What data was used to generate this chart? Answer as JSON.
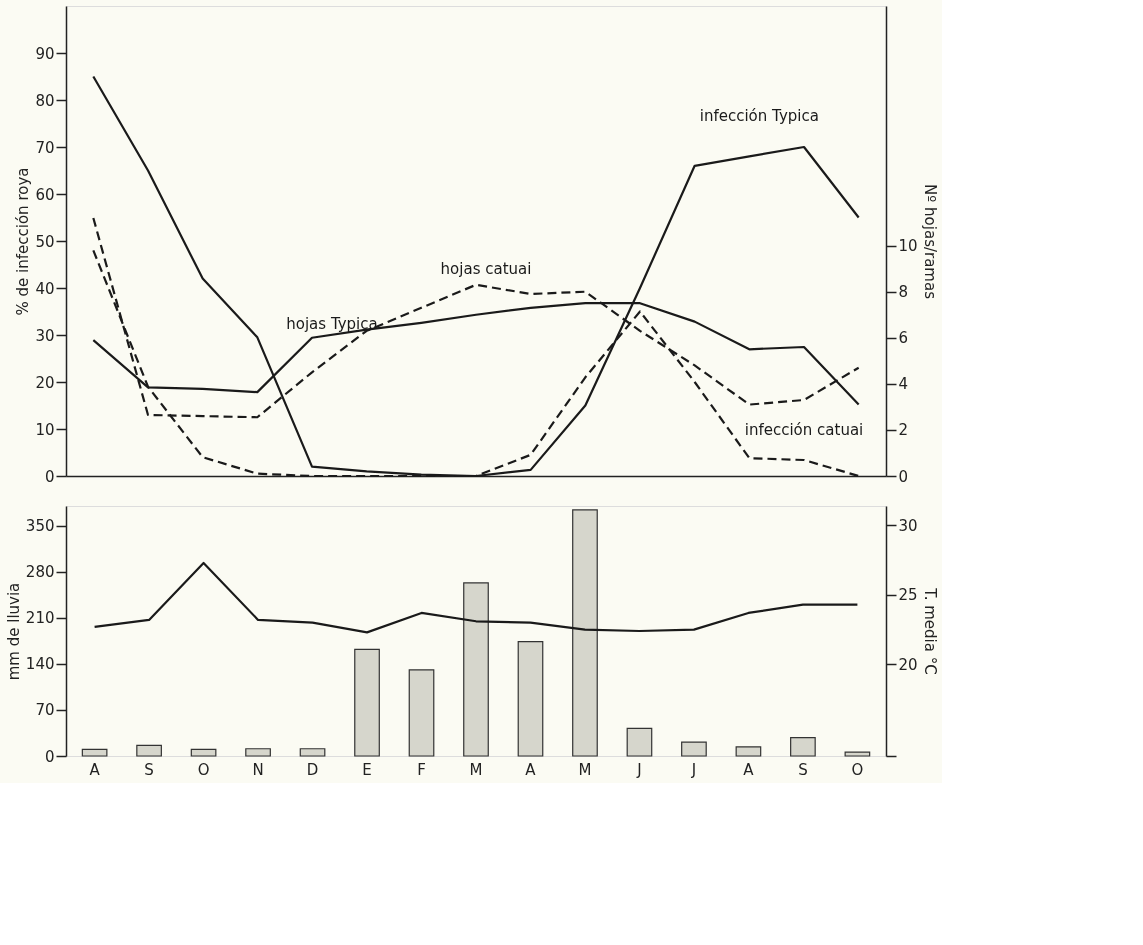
{
  "chart_data": [
    {
      "type": "line",
      "categories": [
        null,
        null,
        null,
        null,
        null,
        null,
        null,
        null,
        null,
        null,
        null,
        null,
        null,
        null,
        null
      ],
      "tick_labels": "y",
      "grid": false,
      "ylabel": "% de infección roya",
      "ylim": [
        0,
        100
      ],
      "yticks": [
        0,
        10,
        20,
        30,
        40,
        50,
        60,
        70,
        80,
        90
      ],
      "y2label": "Nº hojas/ramas",
      "y2lim": [
        0,
        20.4
      ],
      "y2ticks": [
        0,
        2,
        4,
        6,
        8,
        10
      ],
      "series": [
        {
          "name": "infección Typica",
          "color": "#1a1a1a",
          "line_style": "solid",
          "values": [
            85,
            65,
            42,
            29.5,
            2,
            1,
            0.3,
            0,
            1.3,
            15,
            40,
            66,
            68,
            70,
            55
          ]
        },
        {
          "name": "infección catuai",
          "color": "#1a1a1a",
          "line_style": "dashed",
          "values": [
            48,
            19,
            4,
            0.5,
            0,
            0,
            0,
            0,
            4.5,
            21,
            35,
            20,
            3.8,
            3.4,
            0
          ]
        },
        {
          "name": "hojas Typica",
          "color": "#1a1a1a",
          "line_style": "solid",
          "axis": "y2",
          "values": [
            5.9,
            3.85,
            3.78,
            3.64,
            6.0,
            6.35,
            6.65,
            7.0,
            7.3,
            7.5,
            7.5,
            6.7,
            5.5,
            5.6,
            3.1
          ]
        },
        {
          "name": "hojas catuai",
          "color": "#1a1a1a",
          "line_style": "dashed",
          "axis": "y2",
          "values": [
            11.2,
            2.65,
            2.6,
            2.55,
            4.5,
            6.3,
            7.3,
            8.3,
            7.9,
            8.0,
            6.3,
            4.8,
            3.1,
            3.3,
            4.7
          ]
        }
      ]
    },
    {
      "type": "bar",
      "categories": [
        "A",
        "S",
        "O",
        "N",
        "D",
        "E",
        "F",
        "M",
        "A",
        "M",
        "J",
        "J",
        "A",
        "S",
        "O"
      ],
      "grid": false,
      "ylabel": "mm de lluvia",
      "ylim": [
        0,
        380
      ],
      "yticks": [
        0,
        70,
        140,
        210,
        280,
        350
      ],
      "y2label": "T. media °C",
      "y2lim": [
        13.4,
        31.4
      ],
      "y2ticks": [
        {
          "value": 13.4,
          "label": null
        },
        20,
        25,
        30
      ],
      "series": [
        {
          "color": "#d6d6cc",
          "values": [
            10,
            16,
            10,
            11,
            11,
            162,
            131,
            263,
            174,
            374,
            42,
            21,
            14,
            28,
            6
          ]
        },
        {
          "type": "line",
          "axis": "y2",
          "color": "#1a1a1a",
          "line_style": "solid",
          "values": [
            22.7,
            23.2,
            27.3,
            23.2,
            23.0,
            22.3,
            23.7,
            23.1,
            23.0,
            22.5,
            22.4,
            22.5,
            23.7,
            24.3,
            24.3
          ]
        }
      ]
    }
  ]
}
